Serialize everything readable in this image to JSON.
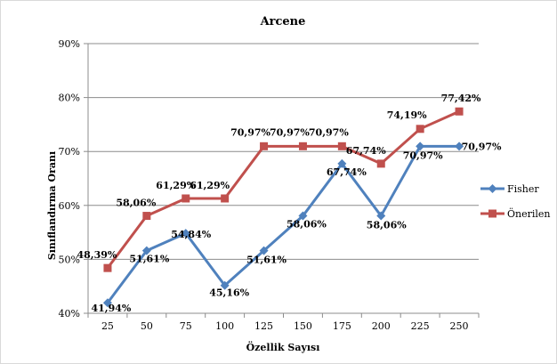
{
  "chart_data": {
    "type": "line",
    "title": "Arcene",
    "xlabel": "Özellik Sayısı",
    "ylabel": "Sınıflandırma Oranı",
    "categories": [
      "25",
      "50",
      "75",
      "100",
      "125",
      "150",
      "175",
      "200",
      "225",
      "250"
    ],
    "ylim": [
      40,
      90
    ],
    "yticks": [
      "40%",
      "50%",
      "60%",
      "70%",
      "80%",
      "90%"
    ],
    "grid": true,
    "legend_position": "right",
    "series": [
      {
        "name": "Fisher",
        "color": "#4f81bd",
        "marker": "diamond",
        "values": [
          41.94,
          51.61,
          54.84,
          45.16,
          51.61,
          58.06,
          67.74,
          58.06,
          70.97,
          70.97
        ],
        "labels": [
          "41,94%",
          "51,61%",
          "54,84%",
          "45,16%",
          "51,61%",
          "58,06%",
          "67,74%",
          "58,06%",
          "70,97%",
          "70,97%"
        ]
      },
      {
        "name": "Önerilen",
        "color": "#c0504d",
        "marker": "square",
        "values": [
          48.39,
          58.06,
          61.29,
          61.29,
          70.97,
          70.97,
          70.97,
          67.74,
          74.19,
          77.42
        ],
        "labels": [
          "48,39%",
          "58,06%",
          "61,29%",
          "61,29%",
          "70,97%",
          "70,97%",
          "70,97%",
          "67,74%",
          "74,19%",
          "77,42%"
        ]
      }
    ]
  }
}
